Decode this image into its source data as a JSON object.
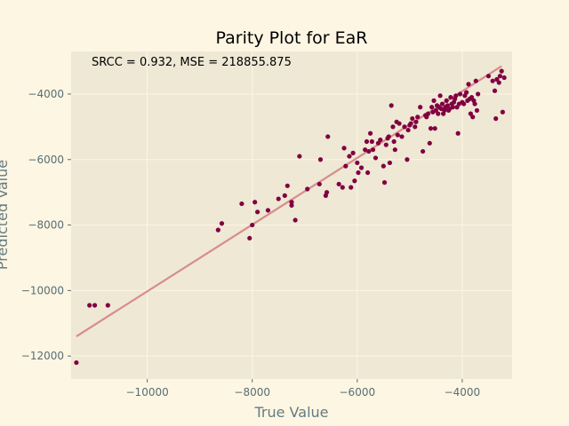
{
  "chart_data": {
    "type": "scatter",
    "title": "Parity Plot for EaR",
    "annotation": "SRCC = 0.932, MSE = 218855.875",
    "xlabel": "True Value",
    "ylabel": "Predicted Value",
    "xlim": [
      -11450,
      -3050
    ],
    "ylim": [
      -12700,
      -2700
    ],
    "xticks": [
      -10000,
      -8000,
      -6000,
      -4000
    ],
    "yticks": [
      -12000,
      -10000,
      -8000,
      -6000,
      -4000
    ],
    "grid": true,
    "colors": {
      "points": "#800040",
      "fit_line": "#d98b8b",
      "plot_bg": "#eee8d5",
      "page_bg": "#fdf6e3",
      "grid": "#fdf6e3"
    },
    "fit_line": {
      "x": [
        -11350,
        -3250
      ],
      "y": [
        -11400,
        -3150
      ]
    },
    "points": [
      [
        -11350,
        -12200
      ],
      [
        -11100,
        -10450
      ],
      [
        -11000,
        -10450
      ],
      [
        -10750,
        -10450
      ],
      [
        -8650,
        -8150
      ],
      [
        -8580,
        -7950
      ],
      [
        -8200,
        -7350
      ],
      [
        -8050,
        -8400
      ],
      [
        -8000,
        -8000
      ],
      [
        -7950,
        -7300
      ],
      [
        -7900,
        -7600
      ],
      [
        -7700,
        -7550
      ],
      [
        -7500,
        -7200
      ],
      [
        -7380,
        -7100
      ],
      [
        -7330,
        -6800
      ],
      [
        -7250,
        -7300
      ],
      [
        -7250,
        -7400
      ],
      [
        -7180,
        -7850
      ],
      [
        -7100,
        -5900
      ],
      [
        -6950,
        -6900
      ],
      [
        -6720,
        -6750
      ],
      [
        -6700,
        -6000
      ],
      [
        -6600,
        -7100
      ],
      [
        -6580,
        -7000
      ],
      [
        -6560,
        -5300
      ],
      [
        -6350,
        -6750
      ],
      [
        -6280,
        -6850
      ],
      [
        -6250,
        -5650
      ],
      [
        -6220,
        -6200
      ],
      [
        -6150,
        -5900
      ],
      [
        -6120,
        -6850
      ],
      [
        -6080,
        -5800
      ],
      [
        -6050,
        -6650
      ],
      [
        -6000,
        -6100
      ],
      [
        -5980,
        -6400
      ],
      [
        -5920,
        -6250
      ],
      [
        -5850,
        -5700
      ],
      [
        -5820,
        -5450
      ],
      [
        -5800,
        -6400
      ],
      [
        -5780,
        -5750
      ],
      [
        -5750,
        -5200
      ],
      [
        -5720,
        -5450
      ],
      [
        -5700,
        -5700
      ],
      [
        -5650,
        -5950
      ],
      [
        -5600,
        -5500
      ],
      [
        -5560,
        -5400
      ],
      [
        -5500,
        -6200
      ],
      [
        -5480,
        -6700
      ],
      [
        -5450,
        -5550
      ],
      [
        -5420,
        -5350
      ],
      [
        -5400,
        -5300
      ],
      [
        -5380,
        -6100
      ],
      [
        -5350,
        -4350
      ],
      [
        -5320,
        -5000
      ],
      [
        -5300,
        -5450
      ],
      [
        -5280,
        -5700
      ],
      [
        -5250,
        -4850
      ],
      [
        -5230,
        -5250
      ],
      [
        -5200,
        -4900
      ],
      [
        -5150,
        -5300
      ],
      [
        -5100,
        -5000
      ],
      [
        -5050,
        -6000
      ],
      [
        -5030,
        -5100
      ],
      [
        -5000,
        -4950
      ],
      [
        -4980,
        -4900
      ],
      [
        -4950,
        -4750
      ],
      [
        -4900,
        -5000
      ],
      [
        -4880,
        -4850
      ],
      [
        -4850,
        -4700
      ],
      [
        -4800,
        -4400
      ],
      [
        -4750,
        -5750
      ],
      [
        -4700,
        -4650
      ],
      [
        -4680,
        -4700
      ],
      [
        -4650,
        -4600
      ],
      [
        -4620,
        -5500
      ],
      [
        -4600,
        -5050
      ],
      [
        -4580,
        -4400
      ],
      [
        -4560,
        -4550
      ],
      [
        -4540,
        -4200
      ],
      [
        -4520,
        -5050
      ],
      [
        -4500,
        -4500
      ],
      [
        -4480,
        -4350
      ],
      [
        -4460,
        -4600
      ],
      [
        -4440,
        -4400
      ],
      [
        -4420,
        -4050
      ],
      [
        -4400,
        -4450
      ],
      [
        -4380,
        -4300
      ],
      [
        -4360,
        -4600
      ],
      [
        -4340,
        -4500
      ],
      [
        -4320,
        -4400
      ],
      [
        -4300,
        -4200
      ],
      [
        -4280,
        -4350
      ],
      [
        -4260,
        -4500
      ],
      [
        -4240,
        -4450
      ],
      [
        -4220,
        -4100
      ],
      [
        -4200,
        -4300
      ],
      [
        -4180,
        -4400
      ],
      [
        -4160,
        -4250
      ],
      [
        -4140,
        -4150
      ],
      [
        -4120,
        -4050
      ],
      [
        -4100,
        -4400
      ],
      [
        -4080,
        -5200
      ],
      [
        -4060,
        -4300
      ],
      [
        -4040,
        -4000
      ],
      [
        -4000,
        -4250
      ],
      [
        -3970,
        -4300
      ],
      [
        -3950,
        -4050
      ],
      [
        -3920,
        -3950
      ],
      [
        -3900,
        -4200
      ],
      [
        -3880,
        -3700
      ],
      [
        -3860,
        -4150
      ],
      [
        -3840,
        -4600
      ],
      [
        -3820,
        -4100
      ],
      [
        -3800,
        -4700
      ],
      [
        -3780,
        -4200
      ],
      [
        -3760,
        -4300
      ],
      [
        -3740,
        -3600
      ],
      [
        -3720,
        -4500
      ],
      [
        -3700,
        -4000
      ],
      [
        -3500,
        -3450
      ],
      [
        -3420,
        -3600
      ],
      [
        -3380,
        -3900
      ],
      [
        -3360,
        -4750
      ],
      [
        -3340,
        -3550
      ],
      [
        -3300,
        -3650
      ],
      [
        -3280,
        -3450
      ],
      [
        -3250,
        -3300
      ],
      [
        -3230,
        -4550
      ],
      [
        -3200,
        -3500
      ]
    ]
  }
}
